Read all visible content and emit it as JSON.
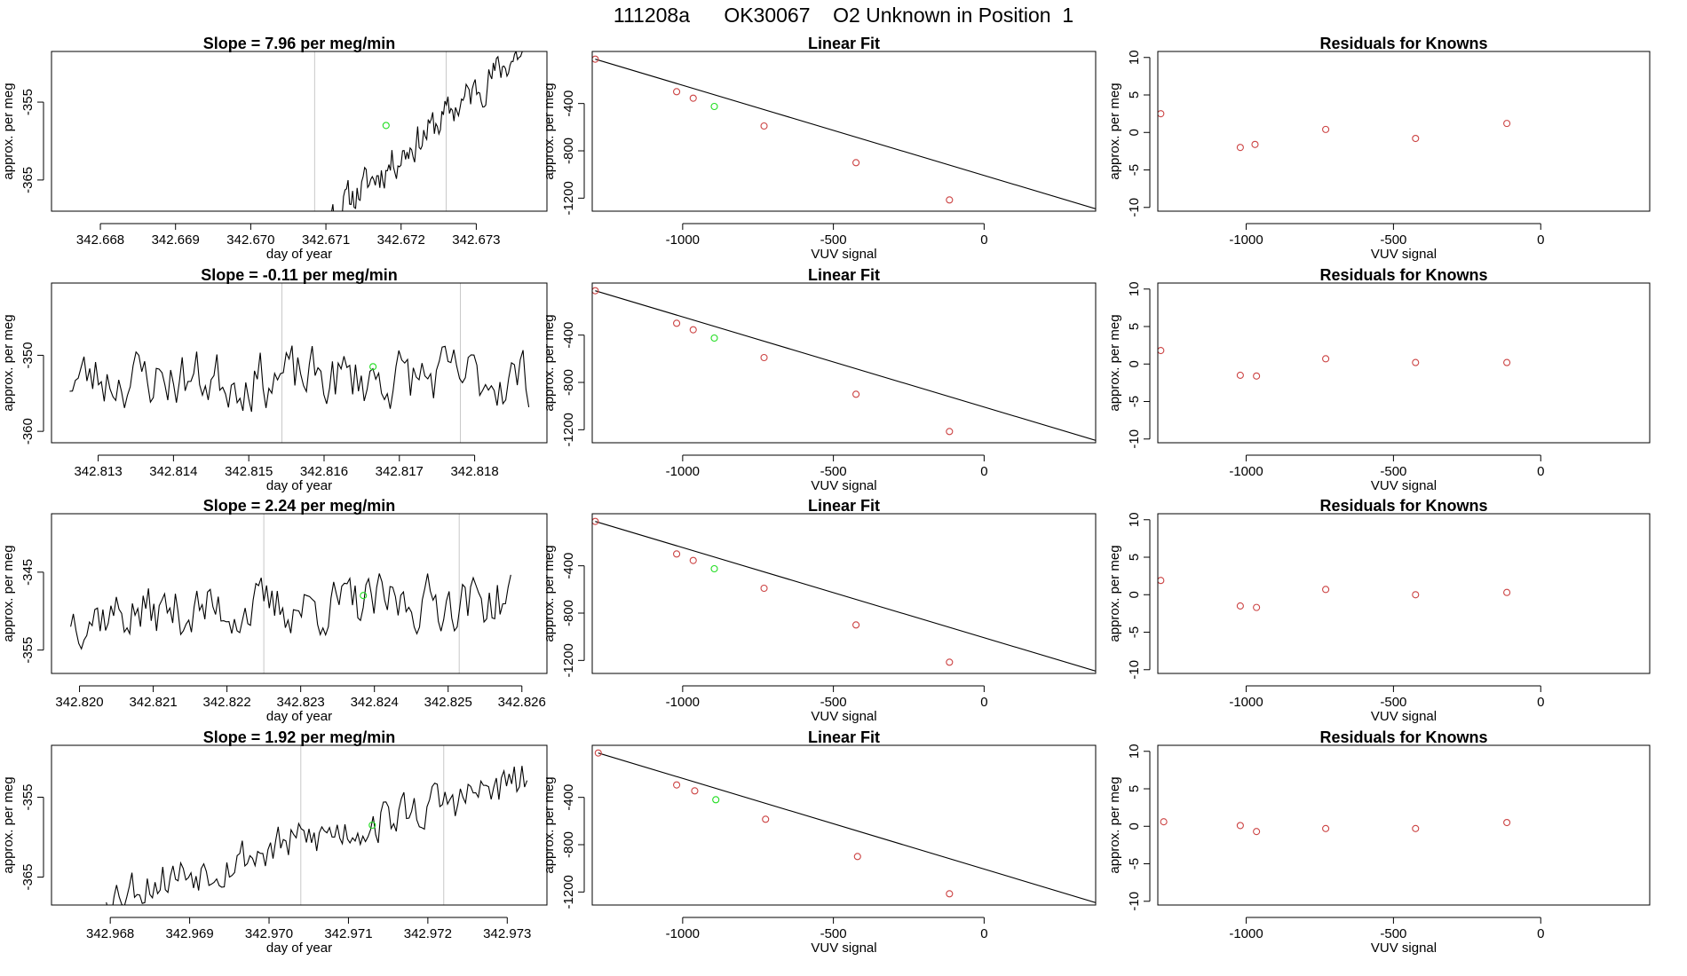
{
  "page_title": "111208a      OK30067    O2 Unknown in Position  1",
  "colors": {
    "line": "#000000",
    "vline": "#c8c8c8",
    "green": "#22dd22",
    "red": "#cc4444",
    "fit": "#000000"
  },
  "chart_data": [
    {
      "type": "line",
      "panel": "trace",
      "row": 0,
      "title": "Slope =  7.96  per meg/min",
      "xlabel": "day of year",
      "ylabel": "approx. per meg",
      "xlim": [
        342.66735,
        342.67394
      ],
      "ylim": [
        -369,
        -348.5
      ],
      "xticks": [
        "342.668",
        "342.669",
        "342.670",
        "342.671",
        "342.672",
        "342.673"
      ],
      "xtick_values": [
        342.668,
        342.669,
        342.67,
        342.671,
        342.672,
        342.673
      ],
      "yticks": [
        "-355",
        "-365"
      ],
      "ytick_values": [
        -355,
        -365
      ],
      "x_start": 342.67065,
      "x_end": 342.67365,
      "n_points": 150,
      "trend_start": -373,
      "trend_end": -348,
      "drop_after": 342.67355,
      "noise": 2.0,
      "seed": 11,
      "vlines": [
        342.67085,
        342.6726
      ],
      "green_point": {
        "x": 342.6718,
        "y": -358
      }
    },
    {
      "type": "scatter",
      "panel": "fit",
      "row": 0,
      "title": "Linear Fit",
      "xlabel": "VUV signal",
      "ylabel": "approx. per meg",
      "xlim": [
        -1300,
        370
      ],
      "ylim": [
        -1310,
        40
      ],
      "xticks": [
        "-1000",
        "-500",
        "0"
      ],
      "xtick_values": [
        -1000,
        -500,
        0
      ],
      "yticks": [
        "-400",
        "-800",
        "-1200"
      ],
      "ytick_values": [
        -400,
        -800,
        -1200
      ],
      "points": [
        [
          -1290,
          -25
        ],
        [
          -1020,
          -300
        ],
        [
          -965,
          -355
        ],
        [
          -730,
          -590
        ],
        [
          -425,
          -900
        ],
        [
          -115,
          -1215
        ]
      ],
      "green_point": [
        -895,
        -425
      ],
      "fit_line": [
        [
          -1290,
          -25
        ],
        [
          370,
          -1290
        ]
      ]
    },
    {
      "type": "scatter",
      "panel": "resid",
      "row": 0,
      "title": "Residuals for Knowns",
      "xlabel": "VUV signal",
      "ylabel": "approx. per meg",
      "xlim": [
        -1300,
        370
      ],
      "ylim": [
        -10.5,
        10.8
      ],
      "xticks": [
        "-1000",
        "-500",
        "0"
      ],
      "xtick_values": [
        -1000,
        -500,
        0
      ],
      "yticks": [
        "10",
        "5",
        "0",
        "-5",
        "-10"
      ],
      "ytick_values": [
        10,
        5,
        0,
        -5,
        -10
      ],
      "points": [
        [
          -1290,
          2.5
        ],
        [
          -1020,
          -2.0
        ],
        [
          -970,
          -1.6
        ],
        [
          -730,
          0.4
        ],
        [
          -425,
          -0.8
        ],
        [
          -115,
          1.2
        ]
      ]
    },
    {
      "type": "line",
      "panel": "trace",
      "row": 1,
      "title": "Slope =  -0.11  per meg/min",
      "xlabel": "day of year",
      "ylabel": "approx. per meg",
      "xlim": [
        342.81238,
        342.81896
      ],
      "ylim": [
        -361.5,
        -340.5
      ],
      "xticks": [
        "342.813",
        "342.814",
        "342.815",
        "342.816",
        "342.817",
        "342.818"
      ],
      "xtick_values": [
        342.813,
        342.814,
        342.815,
        342.816,
        342.817,
        342.818
      ],
      "yticks": [
        "-350",
        "-360"
      ],
      "ytick_values": [
        -350,
        -360
      ],
      "x_start": 342.81262,
      "x_end": 342.81872,
      "n_points": 160,
      "trend_start": -353,
      "trend_end": -353,
      "noise": 3.4,
      "seed": 23,
      "vlines": [
        342.81544,
        342.81781
      ],
      "green_point": {
        "x": 342.81665,
        "y": -351.5
      }
    },
    {
      "type": "scatter",
      "panel": "fit",
      "row": 1,
      "title": "Linear Fit",
      "xlabel": "VUV signal",
      "ylabel": "approx. per meg",
      "xlim": [
        -1300,
        370
      ],
      "ylim": [
        -1310,
        40
      ],
      "xticks": [
        "-1000",
        "-500",
        "0"
      ],
      "xtick_values": [
        -1000,
        -500,
        0
      ],
      "yticks": [
        "-400",
        "-800",
        "-1200"
      ],
      "ytick_values": [
        -400,
        -800,
        -1200
      ],
      "points": [
        [
          -1290,
          -25
        ],
        [
          -1020,
          -300
        ],
        [
          -965,
          -355
        ],
        [
          -730,
          -590
        ],
        [
          -425,
          -900
        ],
        [
          -115,
          -1215
        ]
      ],
      "green_point": [
        -895,
        -425
      ],
      "fit_line": [
        [
          -1290,
          -25
        ],
        [
          370,
          -1290
        ]
      ]
    },
    {
      "type": "scatter",
      "panel": "resid",
      "row": 1,
      "title": "Residuals for Knowns",
      "xlabel": "VUV signal",
      "ylabel": "approx. per meg",
      "xlim": [
        -1300,
        370
      ],
      "ylim": [
        -10.5,
        10.8
      ],
      "xticks": [
        "-1000",
        "-500",
        "0"
      ],
      "xtick_values": [
        -1000,
        -500,
        0
      ],
      "yticks": [
        "10",
        "5",
        "0",
        "-5",
        "-10"
      ],
      "ytick_values": [
        10,
        5,
        0,
        -5,
        -10
      ],
      "points": [
        [
          -1290,
          1.8
        ],
        [
          -1020,
          -1.5
        ],
        [
          -965,
          -1.6
        ],
        [
          -730,
          0.7
        ],
        [
          -425,
          0.2
        ],
        [
          -115,
          0.2
        ]
      ]
    },
    {
      "type": "line",
      "panel": "trace",
      "row": 2,
      "title": "Slope =  2.24  per meg/min",
      "xlabel": "day of year",
      "ylabel": "approx. per meg",
      "xlim": [
        342.81962,
        342.82634
      ],
      "ylim": [
        -358,
        -337.5
      ],
      "xticks": [
        "342.820",
        "342.821",
        "342.822",
        "342.823",
        "342.824",
        "342.825",
        "342.826"
      ],
      "xtick_values": [
        342.82,
        342.821,
        342.822,
        342.823,
        342.824,
        342.825,
        342.826
      ],
      "yticks": [
        "-345",
        "-355"
      ],
      "ytick_values": [
        -345,
        -355
      ],
      "x_start": 342.81988,
      "x_end": 342.82585,
      "n_points": 165,
      "trend_start": -350.5,
      "trend_end": -348.5,
      "noise": 3.0,
      "seed": 37,
      "vlines": [
        342.8225,
        342.82515
      ],
      "green_point": {
        "x": 342.82385,
        "y": -348
      }
    },
    {
      "type": "scatter",
      "panel": "fit",
      "row": 2,
      "title": "Linear Fit",
      "xlabel": "VUV signal",
      "ylabel": "approx. per meg",
      "xlim": [
        -1300,
        370
      ],
      "ylim": [
        -1310,
        40
      ],
      "xticks": [
        "-1000",
        "-500",
        "0"
      ],
      "xtick_values": [
        -1000,
        -500,
        0
      ],
      "yticks": [
        "-400",
        "-800",
        "-1200"
      ],
      "ytick_values": [
        -400,
        -800,
        -1200
      ],
      "points": [
        [
          -1290,
          -25
        ],
        [
          -1020,
          -300
        ],
        [
          -965,
          -355
        ],
        [
          -730,
          -590
        ],
        [
          -425,
          -900
        ],
        [
          -115,
          -1215
        ]
      ],
      "green_point": [
        -895,
        -425
      ],
      "fit_line": [
        [
          -1290,
          -25
        ],
        [
          370,
          -1290
        ]
      ]
    },
    {
      "type": "scatter",
      "panel": "resid",
      "row": 2,
      "title": "Residuals for Knowns",
      "xlabel": "VUV signal",
      "ylabel": "approx. per meg",
      "xlim": [
        -1300,
        370
      ],
      "ylim": [
        -10.5,
        10.8
      ],
      "xticks": [
        "-1000",
        "-500",
        "0"
      ],
      "xtick_values": [
        -1000,
        -500,
        0
      ],
      "yticks": [
        "10",
        "5",
        "0",
        "-5",
        "-10"
      ],
      "ytick_values": [
        10,
        5,
        0,
        -5,
        -10
      ],
      "points": [
        [
          -1290,
          1.9
        ],
        [
          -1020,
          -1.5
        ],
        [
          -965,
          -1.7
        ],
        [
          -730,
          0.7
        ],
        [
          -425,
          0.0
        ],
        [
          -115,
          0.3
        ]
      ]
    },
    {
      "type": "line",
      "panel": "trace",
      "row": 3,
      "title": "Slope =  1.92  per meg/min",
      "xlabel": "day of year",
      "ylabel": "approx. per meg",
      "xlim": [
        342.96726,
        342.9735
      ],
      "ylim": [
        -368.5,
        -348.5
      ],
      "xticks": [
        "342.968",
        "342.969",
        "342.970",
        "342.971",
        "342.972",
        "342.973"
      ],
      "xtick_values": [
        342.968,
        342.969,
        342.97,
        342.971,
        342.972,
        342.973
      ],
      "yticks": [
        "-355",
        "-365"
      ],
      "ytick_values": [
        -355,
        -365
      ],
      "x_start": 342.96795,
      "x_end": 342.97325,
      "n_points": 165,
      "trend_start": -367,
      "trend_end": -353,
      "noise": 2.4,
      "seed": 53,
      "vlines": [
        342.9704,
        342.9722
      ],
      "green_point": {
        "x": 342.9713,
        "y": -358.5
      }
    },
    {
      "type": "scatter",
      "panel": "fit",
      "row": 3,
      "title": "Linear Fit",
      "xlabel": "VUV signal",
      "ylabel": "approx. per meg",
      "xlim": [
        -1300,
        370
      ],
      "ylim": [
        -1310,
        40
      ],
      "xticks": [
        "-1000",
        "-500",
        "0"
      ],
      "xtick_values": [
        -1000,
        -500,
        0
      ],
      "yticks": [
        "-400",
        "-800",
        "-1200"
      ],
      "ytick_values": [
        -400,
        -800,
        -1200
      ],
      "points": [
        [
          -1280,
          -25
        ],
        [
          -1020,
          -295
        ],
        [
          -960,
          -345
        ],
        [
          -725,
          -585
        ],
        [
          -420,
          -900
        ],
        [
          -115,
          -1215
        ]
      ],
      "green_point": [
        -890,
        -420
      ],
      "fit_line": [
        [
          -1280,
          -25
        ],
        [
          370,
          -1290
        ]
      ]
    },
    {
      "type": "scatter",
      "panel": "resid",
      "row": 3,
      "title": "Residuals for Knowns",
      "xlabel": "VUV signal",
      "ylabel": "approx. per meg",
      "xlim": [
        -1300,
        370
      ],
      "ylim": [
        -10.5,
        10.8
      ],
      "xticks": [
        "-1000",
        "-500",
        "0"
      ],
      "xtick_values": [
        -1000,
        -500,
        0
      ],
      "yticks": [
        "10",
        "5",
        "0",
        "-5",
        "-10"
      ],
      "ytick_values": [
        10,
        5,
        0,
        -5,
        -10
      ],
      "points": [
        [
          -1280,
          0.6
        ],
        [
          -1020,
          0.1
        ],
        [
          -965,
          -0.7
        ],
        [
          -730,
          -0.3
        ],
        [
          -425,
          -0.3
        ],
        [
          -115,
          0.5
        ]
      ]
    }
  ]
}
